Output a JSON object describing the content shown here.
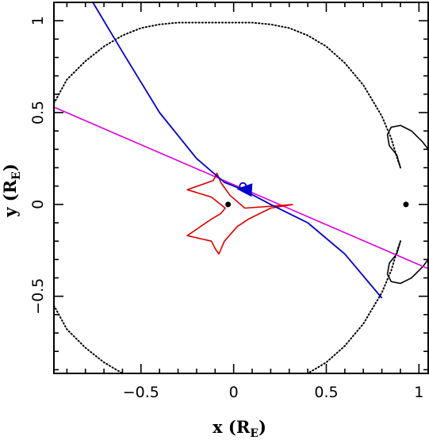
{
  "chart_data": {
    "type": "line",
    "title": "",
    "xlabel": {
      "main": "x (R",
      "sub": "E",
      "end": ")"
    },
    "ylabel": {
      "main": "y (R",
      "sub": "E",
      "end": ")"
    },
    "xlim": [
      -0.97,
      1.05
    ],
    "ylim": [
      -0.92,
      1.1
    ],
    "x_ticks": [
      -0.5,
      0,
      0.5,
      1
    ],
    "x_tick_labels": [
      "−0.5",
      "0",
      "0.5",
      "1"
    ],
    "y_ticks": [
      -0.5,
      0,
      0.5,
      1
    ],
    "y_tick_labels": [
      "−0.5",
      "0",
      "0.5",
      "1"
    ],
    "grid": false,
    "legend": "none",
    "colors": {
      "trajectory": "#0000cc",
      "straight_line": "#dd00dd",
      "caustic": "#dd0000",
      "critical_curve": "#000000",
      "lens_points": "#000000"
    },
    "series": [
      {
        "style": "dotted",
        "color": "#000000",
        "x": [
          -0.97,
          -0.9,
          -0.8,
          -0.7,
          -0.6,
          -0.5,
          -0.4,
          -0.3,
          -0.2,
          -0.1,
          0.0,
          0.1,
          0.2,
          0.3,
          0.4,
          0.5,
          0.6,
          0.7,
          0.8,
          0.85,
          0.88,
          0.9
        ],
        "y": [
          0.55,
          0.68,
          0.78,
          0.86,
          0.92,
          0.96,
          0.98,
          0.99,
          0.99,
          0.99,
          0.99,
          0.99,
          0.98,
          0.96,
          0.92,
          0.86,
          0.77,
          0.65,
          0.48,
          0.36,
          0.26,
          0.2
        ]
      },
      {
        "style": "solid",
        "color": "#000000",
        "x": [
          0.9,
          0.88,
          0.84,
          0.83,
          0.85,
          0.9,
          0.96,
          1.02,
          1.05
        ],
        "y": [
          0.2,
          0.27,
          0.32,
          0.38,
          0.42,
          0.43,
          0.4,
          0.34,
          0.3
        ]
      }
    ],
    "caustic": {
      "x": [
        0.32,
        0.2,
        0.06,
        -0.02,
        -0.07,
        -0.09,
        -0.11,
        -0.25,
        -0.12,
        -0.07,
        -0.045,
        -0.07,
        -0.12,
        -0.25,
        -0.12,
        -0.1,
        -0.08,
        -0.05,
        0.02,
        0.08,
        0.2,
        0.32
      ],
      "y": [
        -0.0,
        -0.01,
        -0.02,
        0.05,
        0.12,
        0.17,
        0.13,
        0.08,
        0.04,
        -0.0,
        -0.02,
        -0.05,
        -0.08,
        -0.17,
        -0.2,
        -0.24,
        -0.27,
        -0.2,
        -0.12,
        -0.08,
        -0.02,
        -0.0
      ]
    },
    "trajectory": {
      "x": [
        -0.76,
        -0.6,
        -0.4,
        -0.2,
        -0.05,
        0.05,
        0.2,
        0.4,
        0.6,
        0.8
      ],
      "y": [
        1.1,
        0.83,
        0.5,
        0.25,
        0.12,
        0.08,
        0.0,
        -0.1,
        -0.27,
        -0.51
      ]
    },
    "straight_line": {
      "x": [
        -0.97,
        1.05
      ],
      "y": [
        0.53,
        -0.35
      ]
    },
    "lens_points": {
      "x": [
        -0.03,
        0.93
      ],
      "y": [
        0.0,
        0.0
      ]
    },
    "source_marker": {
      "x": 0.05,
      "y": 0.1
    },
    "arrow": {
      "x": 0.08,
      "y": 0.08
    }
  }
}
